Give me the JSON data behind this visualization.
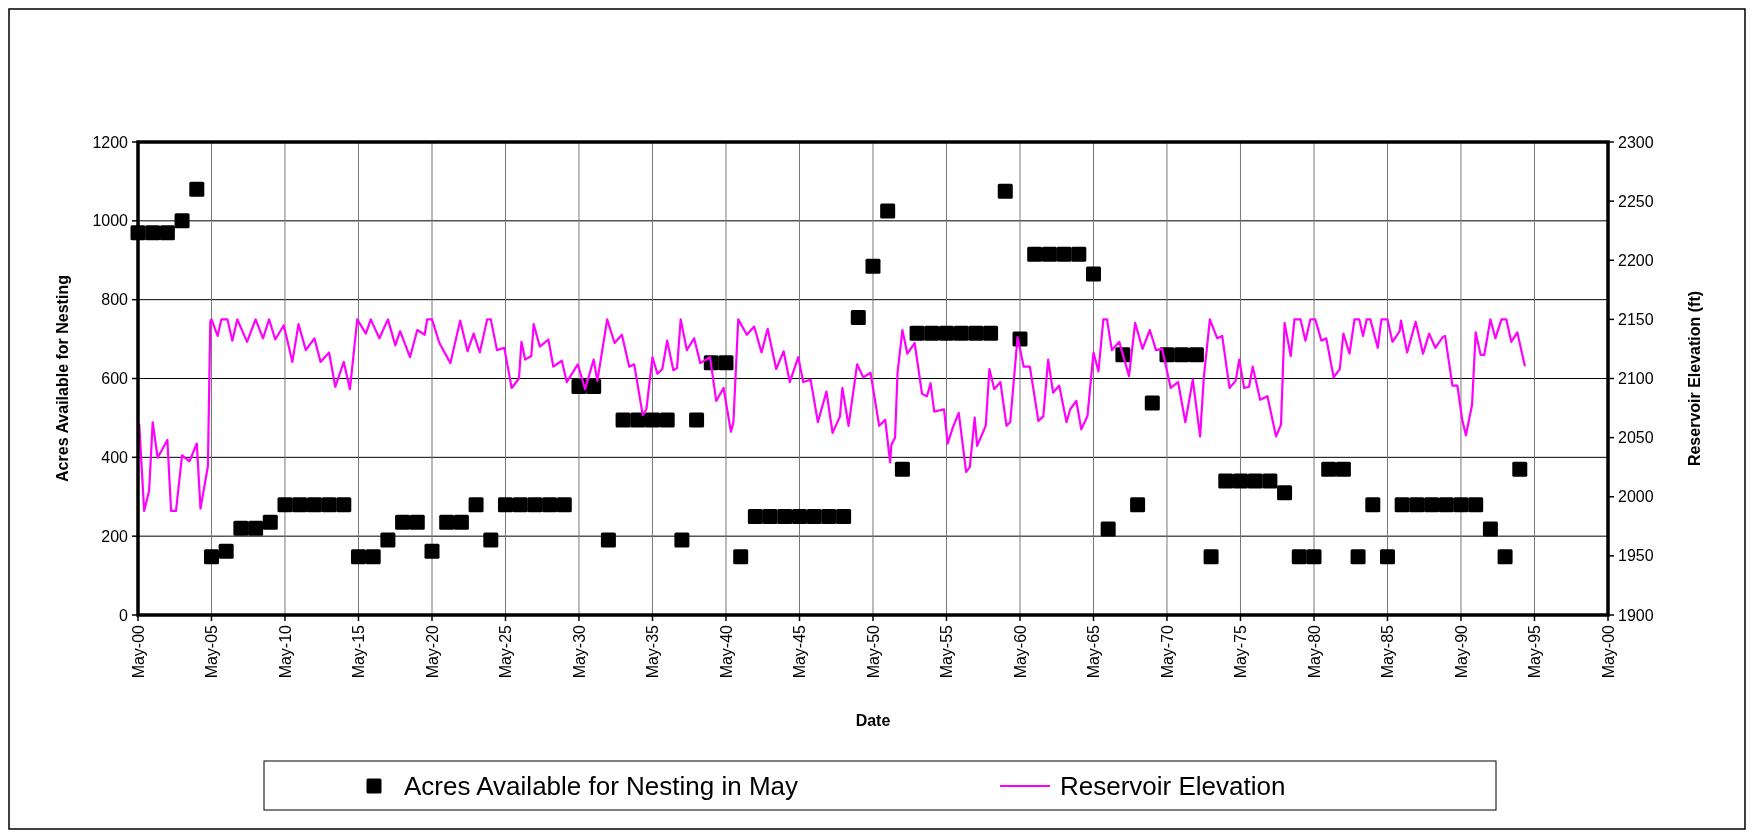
{
  "chart_data": {
    "type": "scatter",
    "xlabel": "Date",
    "ylabel": "Acres Available for Nesting",
    "y2label": "Reservoir Elevation (ft)",
    "xlim": [
      "1900-05",
      "2000-05"
    ],
    "xticks": [
      {
        "value": "1900-05",
        "label": "May-00"
      },
      {
        "value": "1905-05",
        "label": "May-05"
      },
      {
        "value": "1910-05",
        "label": "May-10"
      },
      {
        "value": "1915-05",
        "label": "May-15"
      },
      {
        "value": "1920-05",
        "label": "May-20"
      },
      {
        "value": "1925-05",
        "label": "May-25"
      },
      {
        "value": "1930-05",
        "label": "May-30"
      },
      {
        "value": "1935-05",
        "label": "May-35"
      },
      {
        "value": "1940-05",
        "label": "May-40"
      },
      {
        "value": "1945-05",
        "label": "May-45"
      },
      {
        "value": "1950-05",
        "label": "May-50"
      },
      {
        "value": "1955-05",
        "label": "May-55"
      },
      {
        "value": "1960-05",
        "label": "May-60"
      },
      {
        "value": "1965-05",
        "label": "May-65"
      },
      {
        "value": "1970-05",
        "label": "May-70"
      },
      {
        "value": "1975-05",
        "label": "May-75"
      },
      {
        "value": "1980-05",
        "label": "May-80"
      },
      {
        "value": "1985-05",
        "label": "May-85"
      },
      {
        "value": "1990-05",
        "label": "May-90"
      },
      {
        "value": "1995-05",
        "label": "May-95"
      },
      {
        "value": "2000-05",
        "label": "May-00"
      }
    ],
    "ylim": [
      0,
      1200
    ],
    "yticks": [
      0,
      200,
      400,
      600,
      800,
      1000,
      1200
    ],
    "y2lim": [
      1900,
      2300
    ],
    "y2ticks": [
      1900,
      1950,
      2000,
      2050,
      2100,
      2150,
      2200,
      2250,
      2300
    ],
    "grid": true,
    "legend": "bottom",
    "series": [
      {
        "name": "Acres Available for Nesting in May",
        "marker": "square",
        "color": "#000000",
        "x": [
          "1900-05",
          "1901-05",
          "1902-05",
          "1903-05",
          "1904-05",
          "1905-05",
          "1906-05",
          "1907-05",
          "1908-05",
          "1909-05",
          "1910-05",
          "1911-05",
          "1912-05",
          "1913-05",
          "1914-05",
          "1915-05",
          "1916-05",
          "1917-05",
          "1918-05",
          "1919-05",
          "1920-05",
          "1921-05",
          "1922-05",
          "1923-05",
          "1924-05",
          "1925-05",
          "1926-05",
          "1927-05",
          "1928-05",
          "1929-05",
          "1930-05",
          "1931-05",
          "1932-05",
          "1933-05",
          "1934-05",
          "1935-05",
          "1936-05",
          "1937-05",
          "1938-05",
          "1939-05",
          "1940-05",
          "1941-05",
          "1942-05",
          "1943-05",
          "1944-05",
          "1945-05",
          "1946-05",
          "1947-05",
          "1948-05",
          "1949-05",
          "1950-05",
          "1951-05",
          "1952-05",
          "1953-05",
          "1954-05",
          "1955-05",
          "1956-05",
          "1957-05",
          "1958-05",
          "1959-05",
          "1960-05",
          "1961-05",
          "1962-05",
          "1963-05",
          "1964-05",
          "1965-05",
          "1966-05",
          "1967-05",
          "1968-05",
          "1969-05",
          "1970-05",
          "1971-05",
          "1972-05",
          "1973-05",
          "1974-05",
          "1975-05",
          "1976-05",
          "1977-05",
          "1978-05",
          "1979-05",
          "1980-05",
          "1981-05",
          "1982-05",
          "1983-05",
          "1984-05",
          "1985-05",
          "1986-05",
          "1987-05",
          "1988-05",
          "1989-05",
          "1990-05",
          "1991-05",
          "1992-05",
          "1993-05",
          "1994-05"
        ],
        "values": [
          970,
          970,
          970,
          1000,
          1080,
          148,
          162,
          220,
          220,
          235,
          280,
          280,
          280,
          280,
          280,
          148,
          148,
          190,
          235,
          235,
          162,
          235,
          235,
          280,
          190,
          280,
          280,
          280,
          280,
          280,
          580,
          580,
          190,
          495,
          495,
          495,
          495,
          190,
          495,
          640,
          640,
          148,
          250,
          250,
          250,
          250,
          250,
          250,
          250,
          755,
          885,
          1025,
          370,
          715,
          715,
          715,
          715,
          715,
          715,
          1075,
          700,
          915,
          915,
          915,
          915,
          865,
          218,
          660,
          280,
          538,
          660,
          660,
          660,
          148,
          340,
          340,
          340,
          340,
          310,
          148,
          148,
          370,
          370,
          148,
          280,
          148,
          280,
          280,
          280,
          280,
          280,
          280,
          218,
          148,
          370
        ]
      },
      {
        "name": "Reservoir Elevation",
        "type": "line",
        "axis": "y2",
        "color": "#ff00ff",
        "x": [
          "1900-06",
          "1900-10",
          "1901-02",
          "1901-05",
          "1901-09",
          "1902-05",
          "1902-08",
          "1902-12",
          "1903-05",
          "1903-11",
          "1904-05",
          "1904-08",
          "1905-02",
          "1905-04",
          "1905-05",
          "1905-10",
          "1906-01",
          "1906-06",
          "1906-10",
          "1907-02",
          "1907-10",
          "1908-05",
          "1908-11",
          "1909-04",
          "1909-09",
          "1910-04",
          "1910-11",
          "1911-04",
          "1911-10",
          "1912-05",
          "1912-10",
          "1913-05",
          "1913-10",
          "1914-05",
          "1914-10",
          "1915-04",
          "1915-11",
          "1916-03",
          "1916-10",
          "1917-05",
          "1917-11",
          "1918-03",
          "1918-11",
          "1919-05",
          "1919-11",
          "1920-01",
          "1920-05",
          "1920-11",
          "1921-08",
          "1922-04",
          "1922-10",
          "1923-03",
          "1923-08",
          "1924-02",
          "1924-05",
          "1924-10",
          "1925-04",
          "1925-10",
          "1926-04",
          "1926-06",
          "1926-09",
          "1927-02",
          "1927-04",
          "1927-09",
          "1928-04",
          "1928-08",
          "1929-03",
          "1929-07",
          "1930-04",
          "1930-10",
          "1931-05",
          "1931-08",
          "1932-04",
          "1932-10",
          "1933-04",
          "1933-10",
          "1934-02",
          "1934-09",
          "1934-12",
          "1935-05",
          "1935-09",
          "1936-01",
          "1936-05",
          "1936-10",
          "1937-01",
          "1937-04",
          "1937-09",
          "1938-03",
          "1938-08",
          "1939-04",
          "1939-09",
          "1940-03",
          "1940-09",
          "1940-11",
          "1941-03",
          "1941-10",
          "1942-04",
          "1942-10",
          "1943-03",
          "1943-10",
          "1944-04",
          "1944-09",
          "1945-04",
          "1945-08",
          "1946-02",
          "1946-08",
          "1947-03",
          "1947-08",
          "1948-02",
          "1948-04",
          "1948-09",
          "1949-04",
          "1949-09",
          "1950-03",
          "1950-10",
          "1951-03",
          "1951-07",
          "1951-08",
          "1951-11",
          "1952-01",
          "1952-05",
          "1952-09",
          "1953-03",
          "1953-09",
          "1954-01",
          "1954-04",
          "1954-07",
          "1955-03",
          "1955-06",
          "1955-10",
          "1956-03",
          "1956-09",
          "1956-12",
          "1957-04",
          "1957-06",
          "1958-01",
          "1958-04",
          "1958-08",
          "1959-01",
          "1959-06",
          "1959-09",
          "1960-03",
          "1960-08",
          "1961-01",
          "1961-08",
          "1961-12",
          "1962-04",
          "1962-08",
          "1963-01",
          "1963-07",
          "1963-10",
          "1964-03",
          "1964-07",
          "1964-12",
          "1965-05",
          "1965-09",
          "1966-01",
          "1966-04",
          "1966-08",
          "1967-02",
          "1967-10",
          "1968-03",
          "1968-09",
          "1969-03",
          "1969-08",
          "1970-01",
          "1970-08",
          "1971-02",
          "1971-08",
          "1972-02",
          "1972-08",
          "1972-11",
          "1973-04",
          "1973-10",
          "1974-02",
          "1974-08",
          "1975-01",
          "1975-04",
          "1975-08",
          "1975-12",
          "1976-03",
          "1976-09",
          "1977-03",
          "1977-10",
          "1978-02",
          "1978-05",
          "1978-10",
          "1979-01",
          "1979-06",
          "1979-10",
          "1980-02",
          "1980-06",
          "1980-11",
          "1981-03",
          "1981-09",
          "1982-02",
          "1982-05",
          "1982-10",
          "1983-02",
          "1983-06",
          "1983-09",
          "1983-12",
          "1984-03",
          "1984-09",
          "1984-12",
          "1985-05",
          "1985-09",
          "1986-03",
          "1986-04",
          "1986-09",
          "1987-04",
          "1987-10",
          "1988-03",
          "1988-08",
          "1989-02",
          "1989-04",
          "1989-10",
          "1990-02",
          "1990-06",
          "1990-09",
          "1991-02",
          "1991-05",
          "1991-09",
          "1991-12",
          "1992-05",
          "1992-09",
          "1993-02",
          "1993-06",
          "1993-10",
          "1994-03",
          "1994-09"
        ],
        "values": [
          2061,
          1988,
          2005,
          2063,
          2033,
          2048,
          1988,
          1988,
          2035,
          2030,
          2045,
          1990,
          2026,
          2148,
          2150,
          2136,
          2150,
          2150,
          2132,
          2150,
          2131,
          2150,
          2134,
          2150,
          2133,
          2145,
          2114,
          2146,
          2124,
          2134,
          2114,
          2122,
          2093,
          2114,
          2091,
          2150,
          2138,
          2150,
          2134,
          2150,
          2128,
          2140,
          2118,
          2141,
          2137,
          2150,
          2150,
          2130,
          2113,
          2149,
          2123,
          2138,
          2122,
          2150,
          2150,
          2124,
          2126,
          2092,
          2100,
          2131,
          2116,
          2119,
          2146,
          2127,
          2133,
          2110,
          2115,
          2097,
          2112,
          2091,
          2116,
          2098,
          2150,
          2130,
          2137,
          2110,
          2112,
          2069,
          2074,
          2118,
          2104,
          2108,
          2132,
          2107,
          2109,
          2150,
          2124,
          2134,
          2113,
          2118,
          2081,
          2092,
          2055,
          2063,
          2150,
          2137,
          2144,
          2122,
          2142,
          2108,
          2123,
          2097,
          2118,
          2097,
          2099,
          2063,
          2089,
          2054,
          2068,
          2092,
          2060,
          2112,
          2101,
          2105,
          2060,
          2065,
          2029,
          2044,
          2050,
          2105,
          2141,
          2121,
          2130,
          2087,
          2085,
          2096,
          2072,
          2074,
          2045,
          2058,
          2071,
          2021,
          2025,
          2067,
          2043,
          2060,
          2108,
          2091,
          2097,
          2060,
          2063,
          2135,
          2110,
          2110,
          2064,
          2068,
          2116,
          2088,
          2094,
          2063,
          2074,
          2081,
          2057,
          2068,
          2122,
          2106,
          2150,
          2150,
          2124,
          2131,
          2102,
          2147,
          2125,
          2141,
          2124,
          2125,
          2092,
          2097,
          2063,
          2099,
          2051,
          2101,
          2150,
          2134,
          2136,
          2092,
          2098,
          2116,
          2092,
          2093,
          2110,
          2082,
          2085,
          2051,
          2061,
          2147,
          2119,
          2150,
          2150,
          2132,
          2150,
          2150,
          2132,
          2134,
          2101,
          2108,
          2138,
          2121,
          2150,
          2150,
          2136,
          2150,
          2150,
          2126,
          2150,
          2150,
          2131,
          2140,
          2149,
          2122,
          2148,
          2121,
          2138,
          2126,
          2135,
          2136,
          2094,
          2094,
          2065,
          2052,
          2078,
          2139,
          2120,
          2120,
          2150,
          2134,
          2150,
          2150,
          2131,
          2139,
          2111
        ]
      }
    ]
  }
}
